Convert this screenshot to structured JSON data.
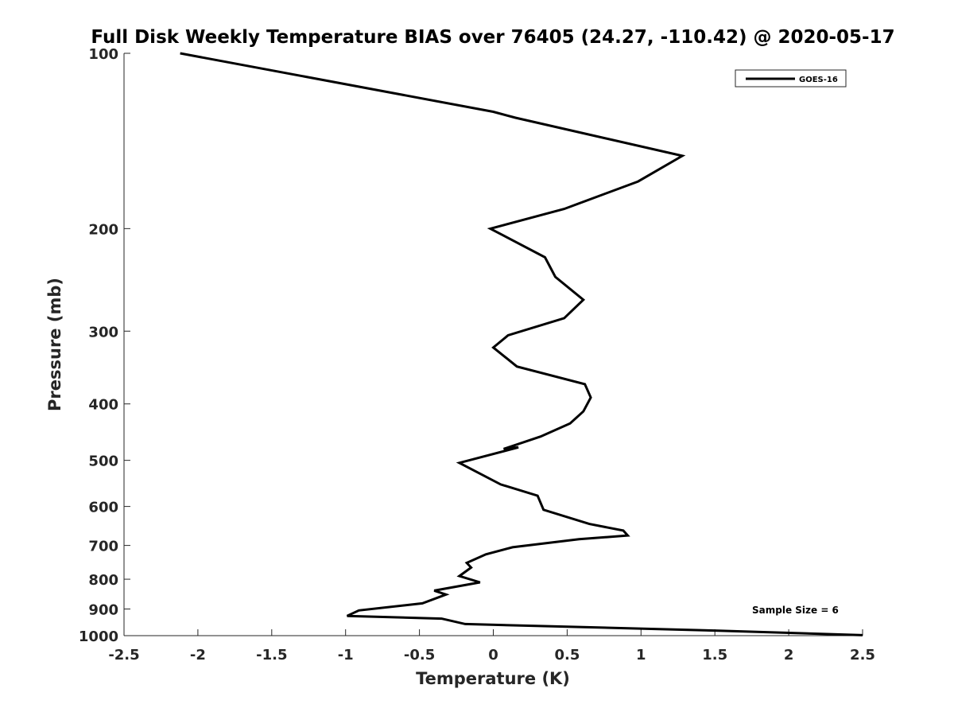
{
  "chart_data": {
    "type": "line",
    "title": "Full Disk Weekly Temperature BIAS over 76405 (24.27, -110.42) @ 2020-05-17",
    "xlabel": "Temperature (K)",
    "ylabel": "Pressure (mb)",
    "xlim": [
      -2.5,
      2.5
    ],
    "ylim": [
      100,
      1000
    ],
    "y_scale": "log",
    "y_reversed": true,
    "x_ticks": [
      -2.5,
      -2,
      -1.5,
      -1,
      -0.5,
      0,
      0.5,
      1,
      1.5,
      2,
      2.5
    ],
    "x_tick_labels": [
      "-2.5",
      "-2",
      "-1.5",
      "-1",
      "-0.5",
      "0",
      "0.5",
      "1",
      "1.5",
      "2",
      "2.5"
    ],
    "y_ticks": [
      100,
      200,
      300,
      400,
      500,
      600,
      700,
      800,
      900,
      1000
    ],
    "y_tick_labels": [
      "100",
      "200",
      "300",
      "400",
      "500",
      "600",
      "700",
      "800",
      "900",
      "1000"
    ],
    "grid": false,
    "legend": {
      "position": "top-right",
      "entries": [
        "GOES-16"
      ]
    },
    "annotation": "Sample Size = 6",
    "series": [
      {
        "name": "GOES-16",
        "color": "#000000",
        "temperature": [
          -2.12,
          0.0,
          0.15,
          1.28,
          0.98,
          0.48,
          -0.02,
          0.35,
          0.42,
          0.61,
          0.48,
          0.1,
          0.0,
          0.16,
          0.62,
          0.66,
          0.61,
          0.52,
          0.32,
          0.07,
          0.17,
          -0.23,
          0.05,
          0.3,
          0.34,
          0.65,
          0.88,
          0.91,
          0.58,
          0.13,
          -0.05,
          -0.18,
          -0.15,
          -0.23,
          -0.09,
          -0.4,
          -0.32,
          -0.48,
          -0.91,
          -0.99,
          -0.35,
          -0.19,
          1.5,
          2.5
        ],
        "pressure": [
          100,
          126,
          129,
          150,
          166,
          185,
          200,
          224,
          242,
          265,
          285,
          305,
          320,
          345,
          370,
          390,
          412,
          432,
          455,
          478,
          475,
          505,
          550,
          575,
          608,
          643,
          660,
          673,
          683,
          705,
          725,
          750,
          764,
          790,
          810,
          837,
          850,
          880,
          905,
          925,
          935,
          955,
          980,
          998
        ]
      }
    ]
  }
}
